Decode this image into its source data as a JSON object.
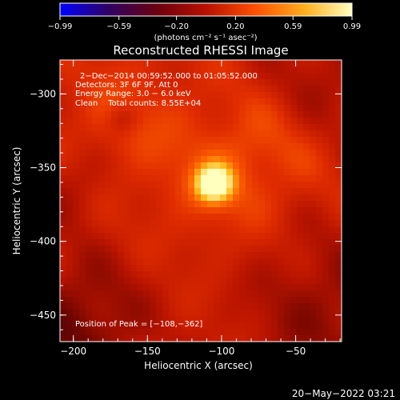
{
  "chart_data": {
    "type": "heatmap",
    "title": "Reconstructed RHESSI Image",
    "xlabel": "Heliocentric X (arcsec)",
    "ylabel": "Heliocentric Y (arcsec)",
    "xlim": [
      -209,
      -19
    ],
    "ylim": [
      -468,
      -277
    ],
    "x_ticks": [
      {
        "value": -200,
        "label": "−200"
      },
      {
        "value": -150,
        "label": "−150"
      },
      {
        "value": -100,
        "label": "−100"
      },
      {
        "value": -50,
        "label": "−50"
      }
    ],
    "y_ticks": [
      {
        "value": -300,
        "label": "−300"
      },
      {
        "value": -350,
        "label": "−350"
      },
      {
        "value": -400,
        "label": "−400"
      },
      {
        "value": -450,
        "label": "−450"
      }
    ],
    "colorbar": {
      "range": [
        -0.99,
        0.99
      ],
      "ticks": [
        {
          "value": -0.99,
          "label": "−0.99"
        },
        {
          "value": -0.59,
          "label": "−0.59"
        },
        {
          "value": -0.2,
          "label": "−0.20"
        },
        {
          "value": 0.2,
          "label": "0.20"
        },
        {
          "value": 0.59,
          "label": "0.59"
        },
        {
          "value": 0.99,
          "label": "0.99"
        }
      ],
      "unit_label": "(photons cm⁻² s⁻¹ asec⁻²)",
      "colors": [
        "#0000ff",
        "#300060",
        "#6a0010",
        "#b81000",
        "#ff5000",
        "#ffb020",
        "#ffffc0"
      ]
    },
    "annotations": [
      "2−Dec−2014 00:59:52.000 to 01:05:52.000",
      "Detectors: 3F 6F 9F, Att 0",
      "Energy Range: 3.0 − 6.0 keV",
      "Clean    Total counts: 8.55E+04"
    ],
    "peak": {
      "label": "Position of Peak = [−108,−362]",
      "x": -108,
      "y": -362
    },
    "sources": [
      {
        "x": -105,
        "y": -361,
        "peak": 0.99
      },
      {
        "x": -69,
        "y": -335,
        "peak": 0.45
      },
      {
        "x": -167,
        "y": -317,
        "peak": 0.3
      }
    ]
  },
  "footer": {
    "timestamp": "20−May−2022 03:21"
  }
}
